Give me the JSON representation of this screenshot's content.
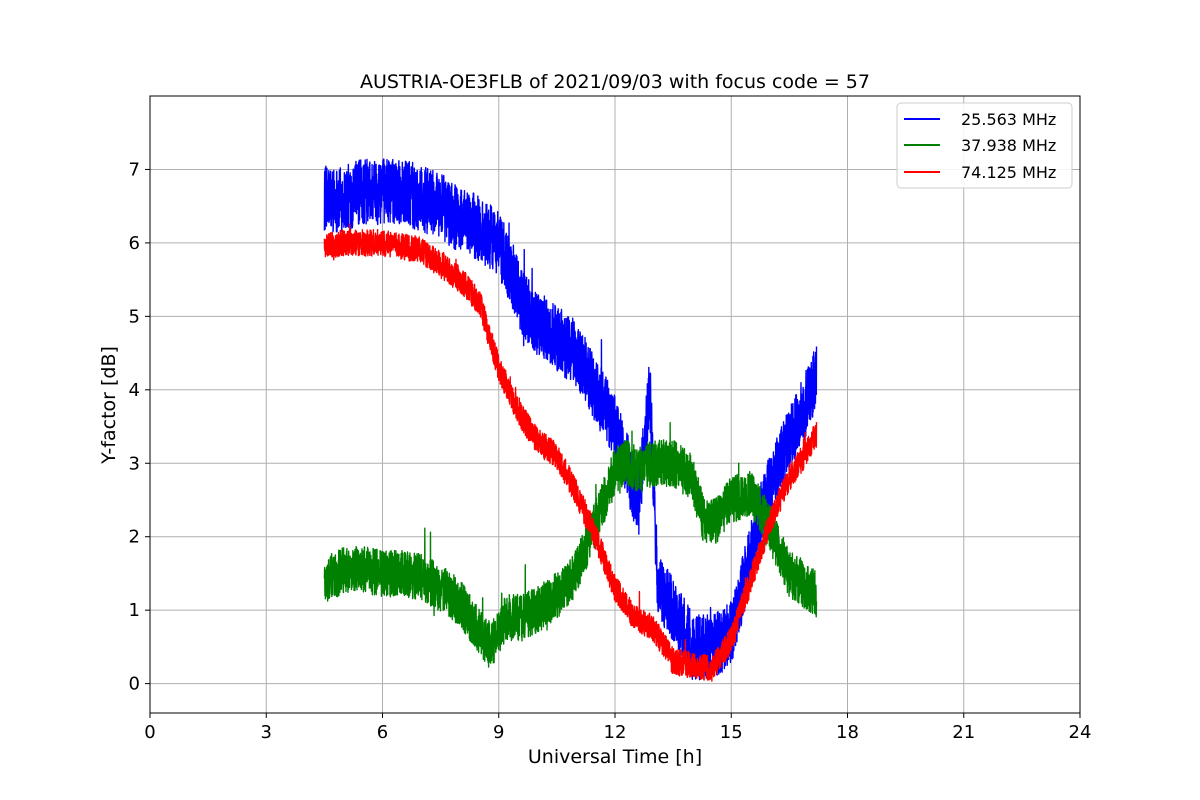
{
  "chart_data": {
    "type": "line",
    "title": "AUSTRIA-OE3FLB of 2021/09/03 with focus code = 57",
    "xlabel": "Universal Time [h]",
    "ylabel": "Y-factor [dB]",
    "xlim": [
      0,
      24
    ],
    "ylim": [
      -0.4,
      8.0
    ],
    "xticks": [
      0,
      3,
      6,
      9,
      12,
      15,
      18,
      21,
      24
    ],
    "yticks": [
      0,
      1,
      2,
      3,
      4,
      5,
      6,
      7
    ],
    "grid": true,
    "legend_position": "top-right",
    "series": [
      {
        "name": "25.563 MHz",
        "color": "#0000ff",
        "x": [
          4.5,
          5.0,
          5.5,
          6.0,
          6.5,
          7.0,
          7.5,
          8.0,
          8.5,
          9.0,
          9.3,
          9.6,
          10.0,
          10.5,
          11.0,
          11.5,
          12.0,
          12.3,
          12.6,
          12.9,
          13.1,
          13.5,
          14.0,
          14.5,
          15.0,
          15.3,
          15.6,
          16.0,
          16.5,
          17.0,
          17.2
        ],
        "values": [
          6.6,
          6.6,
          6.7,
          6.7,
          6.7,
          6.6,
          6.5,
          6.3,
          6.2,
          6.0,
          5.6,
          5.2,
          4.9,
          4.7,
          4.5,
          4.0,
          3.5,
          3.0,
          2.4,
          4.0,
          1.3,
          1.0,
          0.5,
          0.5,
          0.7,
          1.3,
          2.0,
          2.7,
          3.3,
          3.9,
          4.2
        ],
        "spread": 0.45
      },
      {
        "name": "37.938 MHz",
        "color": "#008000",
        "x": [
          4.5,
          5.0,
          5.5,
          6.0,
          6.5,
          7.0,
          7.5,
          8.0,
          8.5,
          8.8,
          9.2,
          9.6,
          10.0,
          10.5,
          11.0,
          11.5,
          12.0,
          12.3,
          12.6,
          13.0,
          13.5,
          14.0,
          14.3,
          14.6,
          15.0,
          15.5,
          16.0,
          16.5,
          17.0,
          17.2
        ],
        "values": [
          1.4,
          1.55,
          1.55,
          1.5,
          1.5,
          1.45,
          1.3,
          1.1,
          0.7,
          0.5,
          0.9,
          0.9,
          1.0,
          1.2,
          1.5,
          2.2,
          2.9,
          3.0,
          2.9,
          3.0,
          3.0,
          2.8,
          2.2,
          2.2,
          2.5,
          2.6,
          2.1,
          1.5,
          1.3,
          1.2
        ],
        "spread": 0.32
      },
      {
        "name": "74.125 MHz",
        "color": "#ff0000",
        "x": [
          4.5,
          5.0,
          5.5,
          6.0,
          6.5,
          7.0,
          7.5,
          8.0,
          8.5,
          9.0,
          9.5,
          10.0,
          10.5,
          11.0,
          11.5,
          12.0,
          12.5,
          13.0,
          13.5,
          14.0,
          14.5,
          15.0,
          15.5,
          16.0,
          16.5,
          17.0,
          17.2
        ],
        "values": [
          5.95,
          6.0,
          6.0,
          6.0,
          5.95,
          5.9,
          5.7,
          5.5,
          5.2,
          4.3,
          3.7,
          3.3,
          3.1,
          2.6,
          2.0,
          1.3,
          0.9,
          0.75,
          0.3,
          0.25,
          0.2,
          0.6,
          1.4,
          2.2,
          2.8,
          3.2,
          3.4
        ],
        "spread": 0.18
      }
    ]
  }
}
